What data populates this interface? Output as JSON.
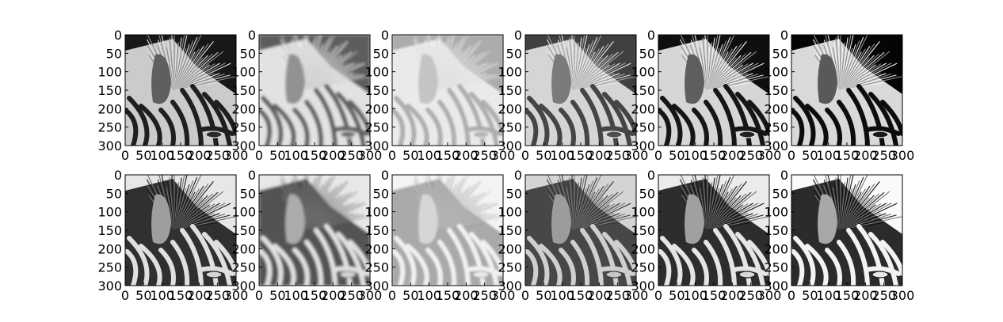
{
  "figure": {
    "rows": 2,
    "cols": 6,
    "x_ticks": [
      "0",
      "50",
      "100",
      "150",
      "200",
      "250",
      "300"
    ],
    "y_ticks": [
      "0",
      "50",
      "100",
      "150",
      "200",
      "250",
      "300"
    ],
    "x_range": [
      0,
      300
    ],
    "y_range": [
      0,
      300
    ],
    "y_axis_inverted": true,
    "image_subject": "zebra head close-up (grayscale)",
    "panels": [
      {
        "row": 0,
        "col": 0,
        "variant": "original-grayscale"
      },
      {
        "row": 0,
        "col": 1,
        "variant": "blurred-light"
      },
      {
        "row": 0,
        "col": 2,
        "variant": "blurred-very-light"
      },
      {
        "row": 0,
        "col": 3,
        "variant": "mid-contrast"
      },
      {
        "row": 0,
        "col": 4,
        "variant": "high-contrast"
      },
      {
        "row": 0,
        "col": 5,
        "variant": "high-contrast-sharp"
      },
      {
        "row": 1,
        "col": 0,
        "variant": "inverted"
      },
      {
        "row": 1,
        "col": 1,
        "variant": "inverted-blurred"
      },
      {
        "row": 1,
        "col": 2,
        "variant": "inverted-dark"
      },
      {
        "row": 1,
        "col": 3,
        "variant": "inverted-mid"
      },
      {
        "row": 1,
        "col": 4,
        "variant": "inverted-contrast"
      },
      {
        "row": 1,
        "col": 5,
        "variant": "inverted-contrast-sharp"
      }
    ]
  }
}
